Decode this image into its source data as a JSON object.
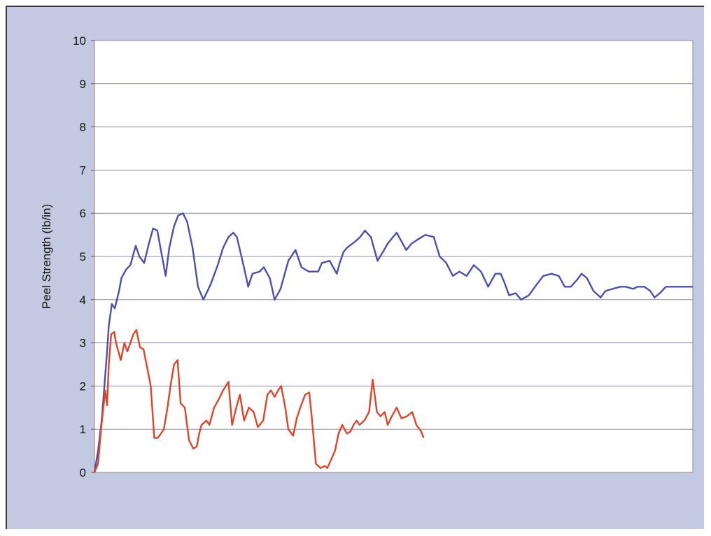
{
  "chart_data": {
    "type": "line",
    "title": "",
    "xlabel": "",
    "ylabel": "Peel Strength (lb/in)",
    "ylim": [
      0,
      10
    ],
    "xlim": [
      0,
      100
    ],
    "yticks": [
      "0",
      "1",
      "2",
      "3",
      "4",
      "5",
      "6",
      "7",
      "8",
      "9",
      "10"
    ],
    "grid": true,
    "legend": "none",
    "series": [
      {
        "color": "#4b4fae",
        "x": [
          0,
          0.6,
          1.2,
          2.1,
          2.4,
          2.9,
          3.4,
          4.1,
          4.5,
          5.3,
          6.0,
          6.6,
          6.9,
          7.5,
          8.3,
          9.1,
          9.8,
          10.5,
          11.3,
          11.9,
          12.5,
          13.3,
          14.0,
          14.8,
          15.5,
          16.4,
          17.3,
          18.2,
          19.4,
          20.6,
          21.5,
          22.4,
          23.2,
          23.8,
          24.9,
          25.7,
          26.4,
          27.6,
          28.3,
          29.3,
          30.1,
          31.1,
          32.4,
          33.6,
          34.6,
          35.8,
          37.4,
          38.0,
          39.3,
          40.5,
          41.0,
          41.6,
          42.2,
          43.6,
          44.4,
          45.2,
          46.2,
          47.3,
          48.2,
          49.0,
          50.5,
          52.1,
          53.0,
          54.1,
          55.3,
          56.7,
          57.7,
          58.8,
          59.9,
          61.0,
          62.2,
          63.4,
          64.6,
          65.8,
          67.0,
          67.9,
          68.5,
          69.3,
          70.4,
          71.3,
          72.6,
          73.9,
          75.0,
          76.4,
          77.6,
          78.6,
          79.6,
          80.6,
          81.4,
          82.3,
          83.4,
          84.6,
          85.4,
          86.6,
          87.9,
          88.8,
          90.0,
          90.8,
          91.9,
          92.9,
          93.6,
          94.5,
          95.5,
          96.6,
          97.6,
          98.4,
          99.0,
          99.6,
          100
        ],
        "values": [
          0,
          0.5,
          1.2,
          2.8,
          3.4,
          3.9,
          3.8,
          4.2,
          4.5,
          4.7,
          4.8,
          5.1,
          5.25,
          5.0,
          4.85,
          5.3,
          5.65,
          5.6,
          5.0,
          4.55,
          5.2,
          5.7,
          5.95,
          6.0,
          5.8,
          5.2,
          4.3,
          4.0,
          4.35,
          4.8,
          5.2,
          5.45,
          5.55,
          5.45,
          4.8,
          4.3,
          4.6,
          4.65,
          4.75,
          4.5,
          4.0,
          4.25,
          4.9,
          5.15,
          4.75,
          4.65,
          4.65,
          4.85,
          4.9,
          4.6,
          4.85,
          5.1,
          5.2,
          5.35,
          5.45,
          5.6,
          5.45,
          4.9,
          5.1,
          5.3,
          5.55,
          5.15,
          5.3,
          5.4,
          5.5,
          5.45,
          5.0,
          4.85,
          4.55,
          4.65,
          4.55,
          4.8,
          4.65,
          4.3,
          4.6,
          4.6,
          4.4,
          4.1,
          4.15,
          4.0,
          4.1,
          4.35,
          4.55,
          4.6,
          4.55,
          4.3,
          4.3,
          4.45,
          4.6,
          4.5,
          4.2,
          4.05,
          4.2,
          4.25,
          4.3,
          4.3,
          4.25,
          4.3,
          4.3,
          4.2,
          4.05,
          4.15,
          4.3,
          4.3,
          4.3,
          4.3,
          4.3,
          4.3,
          4.3
        ]
      },
      {
        "color": "#e0442a",
        "x": [
          0,
          0.6,
          1.1,
          1.8,
          2.1,
          2.4,
          2.8,
          3.3,
          3.6,
          4.4,
          5.0,
          5.5,
          6.0,
          6.5,
          7.0,
          7.6,
          8.2,
          8.7,
          9.4,
          10.0,
          10.6,
          11.1,
          11.6,
          12.2,
          12.7,
          13.3,
          13.9,
          14.4,
          15.1,
          15.8,
          16.5,
          17.1,
          17.5,
          17.9,
          18.7,
          19.2,
          20.0,
          20.8,
          21.5,
          22.4,
          23.0,
          23.7,
          24.3,
          25.0,
          25.8,
          26.6,
          27.3,
          28.2,
          28.9,
          29.5,
          30.1,
          30.7,
          31.2,
          31.9,
          32.4,
          33.2,
          33.8,
          34.4,
          35.2,
          35.9,
          36.3,
          37.0,
          37.8,
          38.5,
          38.9,
          39.4,
          40.2,
          40.8,
          41.4,
          42.2,
          42.8,
          43.3,
          43.8,
          44.3,
          45.1,
          45.9,
          46.5,
          47.2,
          47.8,
          48.5,
          49.0,
          49.7,
          50.5,
          51.3,
          52.2,
          53.1,
          53.8,
          54.6,
          55.0
        ],
        "values": [
          0,
          0.2,
          1.0,
          1.9,
          1.55,
          2.5,
          3.2,
          3.25,
          3.0,
          2.6,
          3.0,
          2.8,
          3.0,
          3.2,
          3.3,
          2.9,
          2.85,
          2.5,
          2.0,
          0.8,
          0.8,
          0.9,
          1.0,
          1.5,
          2.0,
          2.5,
          2.6,
          1.6,
          1.5,
          0.75,
          0.55,
          0.6,
          0.9,
          1.1,
          1.2,
          1.1,
          1.5,
          1.7,
          1.9,
          2.1,
          1.1,
          1.5,
          1.8,
          1.2,
          1.5,
          1.4,
          1.05,
          1.2,
          1.8,
          1.9,
          1.75,
          1.9,
          2.0,
          1.5,
          1.0,
          0.85,
          1.25,
          1.5,
          1.8,
          1.85,
          1.3,
          0.2,
          0.1,
          0.15,
          0.1,
          0.25,
          0.5,
          0.9,
          1.1,
          0.9,
          0.95,
          1.1,
          1.2,
          1.1,
          1.2,
          1.4,
          2.15,
          1.4,
          1.3,
          1.4,
          1.1,
          1.3,
          1.5,
          1.25,
          1.3,
          1.4,
          1.1,
          0.95,
          0.8
        ]
      }
    ]
  }
}
